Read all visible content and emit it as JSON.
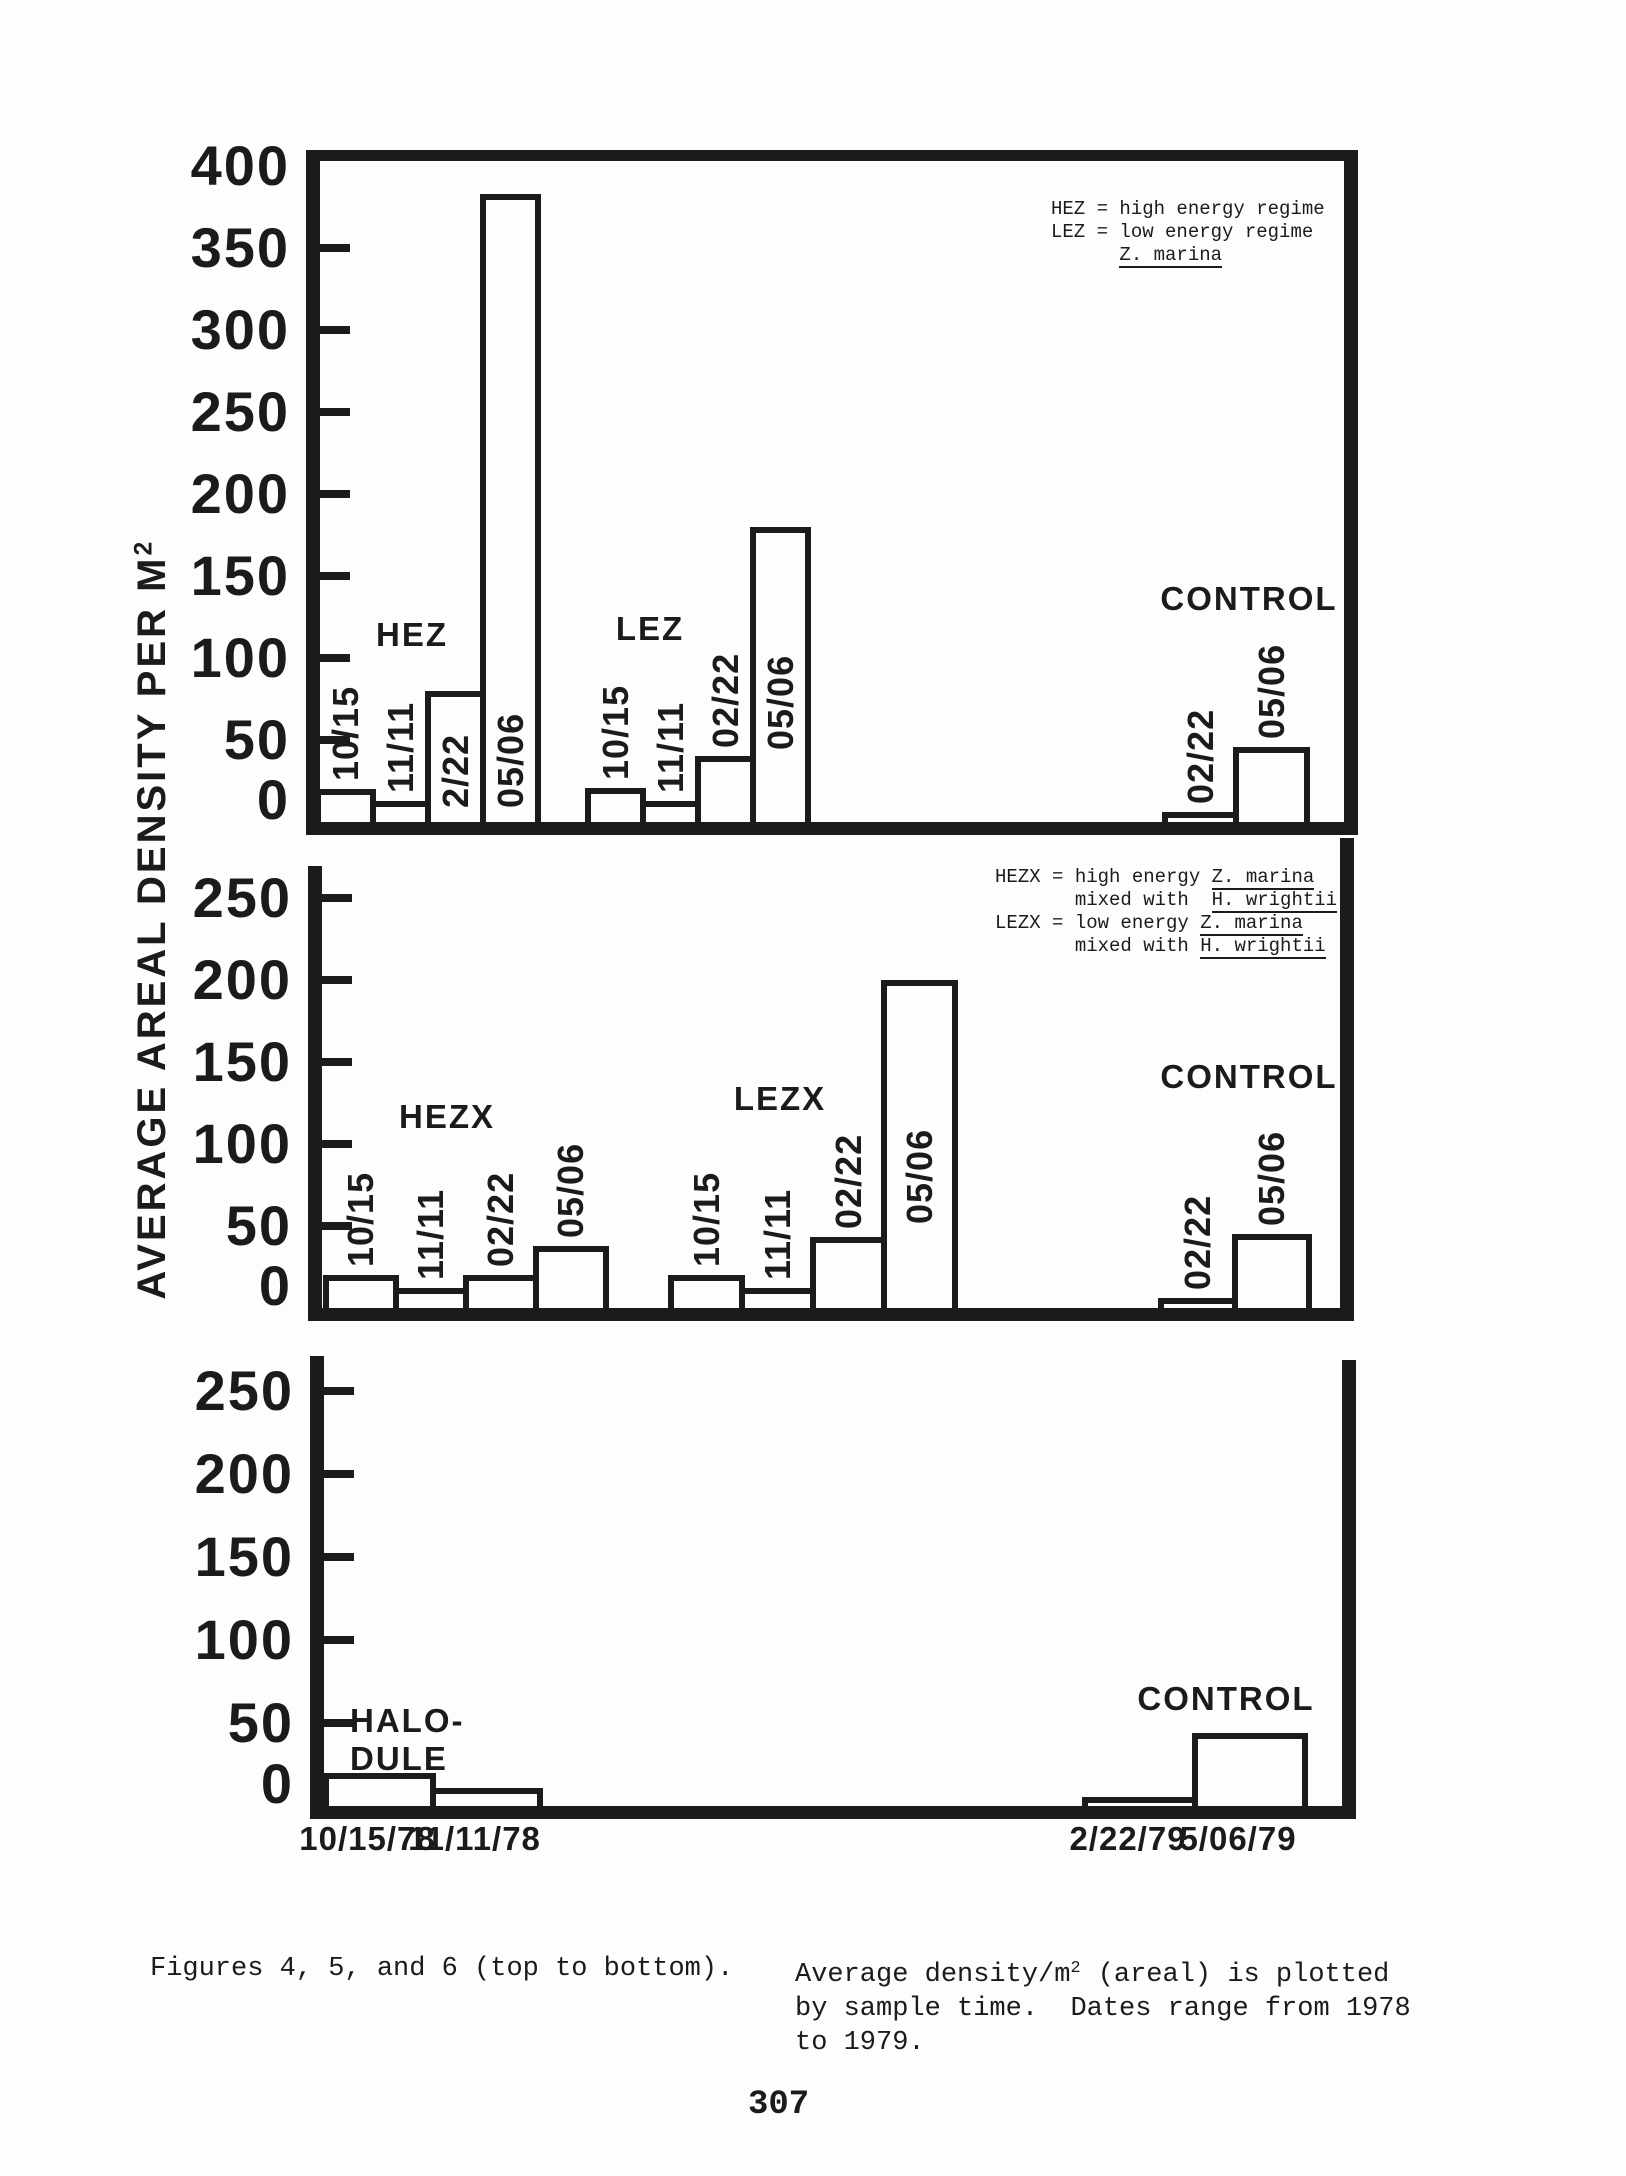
{
  "page": {
    "number": "307",
    "ink": "#1b1b1b",
    "paper": "#fdfdfc"
  },
  "ylabel_segments": [
    {
      "text": "AVERAGE AREAL DENSITY PER M"
    },
    {
      "text": "2",
      "sup": true
    }
  ],
  "caption": {
    "col1": "Figures 4, 5, and 6 (top to bottom).",
    "col2_lines": [
      [
        {
          "text": "Average density/m"
        },
        {
          "text": "2",
          "sup": true
        },
        {
          "text": " (areal) is plotted"
        }
      ],
      [
        {
          "text": "by sample time.  Dates range from 1978"
        }
      ],
      [
        {
          "text": "to 1979."
        }
      ]
    ]
  },
  "chart_data": [
    {
      "figure": "Figure 4",
      "position": "top",
      "type": "bar",
      "ylim": [
        0,
        400
      ],
      "ytick_step": 50,
      "yticks": [
        0,
        50,
        100,
        150,
        200,
        250,
        300,
        350,
        400
      ],
      "grid": false,
      "ylabel": "AVERAGE AREAL DENSITY PER M2 (shared)",
      "legend_lines": [
        [
          {
            "text": "HEZ = high energy regime"
          }
        ],
        [
          {
            "text": "LEZ = low energy regime"
          }
        ],
        [
          {
            "text": "      "
          },
          {
            "text": "Z. marina",
            "u": true
          }
        ]
      ],
      "groups": [
        {
          "label": "HEZ",
          "bars": [
            {
              "label": "10/15",
              "value": 20,
              "label_pos": "above"
            },
            {
              "label": "11/11",
              "value": 13,
              "label_pos": "above"
            },
            {
              "label": "2/22",
              "value": 80,
              "label_pos": "inside"
            },
            {
              "label": "05/06",
              "value": 383,
              "label_pos": "inside"
            }
          ]
        },
        {
          "label": "LEZ",
          "bars": [
            {
              "label": "10/15",
              "value": 21,
              "label_pos": "above"
            },
            {
              "label": "11/11",
              "value": 13,
              "label_pos": "above"
            },
            {
              "label": "02/22",
              "value": 40,
              "label_pos": "above"
            },
            {
              "label": "05/06",
              "value": 180,
              "label_pos": "inside"
            }
          ]
        },
        {
          "label": "CONTROL",
          "bars": [
            {
              "label": "02/22",
              "value": 6,
              "label_pos": "above"
            },
            {
              "label": "05/06",
              "value": 46,
              "label_pos": "above"
            }
          ]
        }
      ]
    },
    {
      "figure": "Figure 5",
      "position": "middle",
      "type": "bar",
      "ylim": [
        0,
        250
      ],
      "ytick_step": 50,
      "yticks": [
        0,
        50,
        100,
        150,
        200,
        250
      ],
      "grid": false,
      "legend_lines": [
        [
          {
            "text": "HEZX = high energy "
          },
          {
            "text": "Z. marina",
            "u": true
          }
        ],
        [
          {
            "text": "       mixed with  "
          },
          {
            "text": "H. wrightii",
            "u": true
          }
        ],
        [
          {
            "text": "LEZX = low energy "
          },
          {
            "text": "Z. marina",
            "u": true
          }
        ],
        [
          {
            "text": "       mixed with "
          },
          {
            "text": "H. wrightii",
            "u": true
          }
        ]
      ],
      "groups": [
        {
          "label": "HEZX",
          "bars": [
            {
              "label": "10/15",
              "value": 20,
              "label_pos": "above"
            },
            {
              "label": "11/11",
              "value": 12,
              "label_pos": "above"
            },
            {
              "label": "02/22",
              "value": 20,
              "label_pos": "above"
            },
            {
              "label": "05/06",
              "value": 38,
              "label_pos": "above"
            }
          ]
        },
        {
          "label": "LEZX",
          "bars": [
            {
              "label": "10/15",
              "value": 20,
              "label_pos": "above"
            },
            {
              "label": "11/11",
              "value": 12,
              "label_pos": "above"
            },
            {
              "label": "02/22",
              "value": 43,
              "label_pos": "above"
            },
            {
              "label": "05/06",
              "value": 200,
              "label_pos": "inside"
            }
          ]
        },
        {
          "label": "CONTROL",
          "bars": [
            {
              "label": "02/22",
              "value": 6,
              "label_pos": "above"
            },
            {
              "label": "05/06",
              "value": 45,
              "label_pos": "above"
            }
          ]
        }
      ]
    },
    {
      "figure": "Figure 6",
      "position": "bottom",
      "type": "bar",
      "ylim": [
        0,
        250
      ],
      "ytick_step": 50,
      "yticks": [
        0,
        50,
        100,
        150,
        200,
        250
      ],
      "grid": false,
      "groups": [
        {
          "label_lines": [
            "HALO-",
            "DULE"
          ],
          "bars": [
            {
              "xlabel": "10/15/78",
              "value": 20
            },
            {
              "xlabel": "11/11/78",
              "value": 11
            }
          ]
        },
        {
          "label": "CONTROL",
          "bars": [
            {
              "xlabel": "2/22/79",
              "value": 5
            },
            {
              "xlabel": "5/06/79",
              "value": 44
            }
          ]
        }
      ]
    }
  ]
}
